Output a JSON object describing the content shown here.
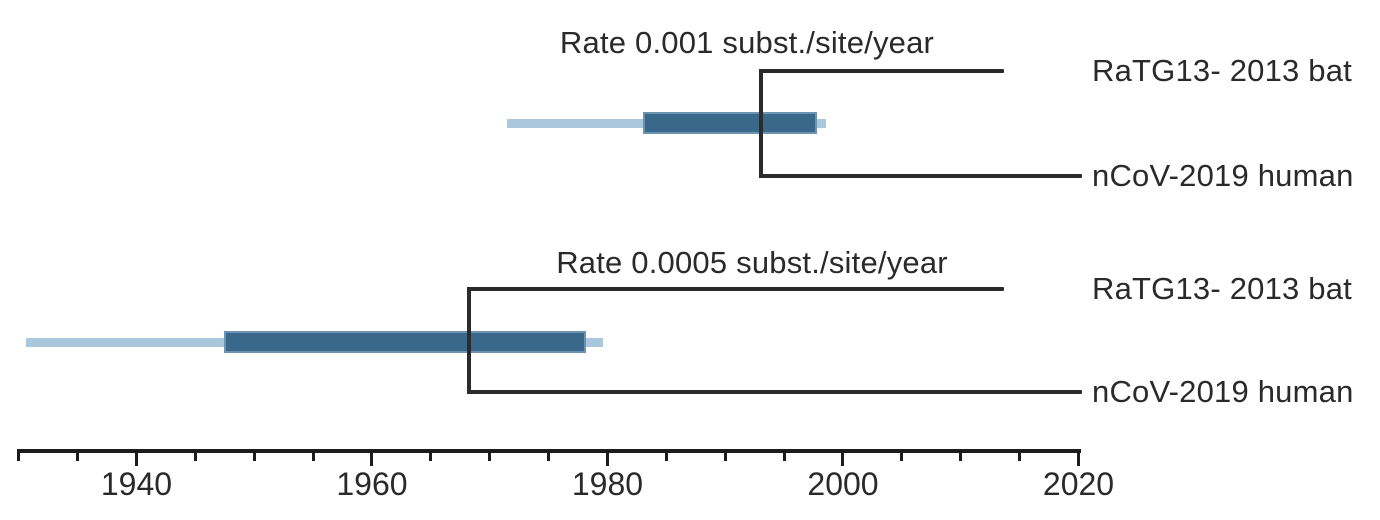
{
  "figure": {
    "background": "#ffffff"
  },
  "chart_data": {
    "type": "bar",
    "variant": "phylogenetic-trees-with-divergence-date-intervals",
    "title": "",
    "xlabel": "",
    "ylabel": "",
    "grid": false,
    "legend": "none",
    "axis": {
      "min_year": 1930,
      "max_year": 2020,
      "minor_tick_interval_years": 5,
      "major_ticks": [
        1940,
        1960,
        1980,
        2000,
        2020
      ],
      "tick_labels": [
        "1940",
        "1960",
        "1980",
        "2000",
        "2020"
      ]
    },
    "panels": [
      {
        "title": "Rate 0.001 subst./site/year",
        "node_year": 1993.0,
        "ci_wide_years": [
          1971.5,
          1998.6
        ],
        "ci_narrow_years": [
          1983.0,
          1997.8
        ],
        "tips": [
          {
            "label": "RaTG13- 2013 bat",
            "year": 2013.7
          },
          {
            "label": "nCoV-2019 human",
            "year": 2020.3
          }
        ]
      },
      {
        "title": "Rate 0.0005 subst./site/year",
        "node_year": 1968.2,
        "ci_wide_years": [
          1930.6,
          1979.6
        ],
        "ci_narrow_years": [
          1947.4,
          1978.2
        ],
        "tips": [
          {
            "label": "RaTG13- 2013 bat",
            "year": 2013.7
          },
          {
            "label": "nCoV-2019 human",
            "year": 2020.3
          }
        ]
      }
    ],
    "colors": {
      "tree_line": "#2b2b2b",
      "axis_line": "#1c1c1c",
      "ci_wide_fill": "#a9c8dd",
      "ci_narrow_fill": "#3a688b",
      "ci_narrow_border": "#6c93b1",
      "text": "#2a2a2a"
    }
  }
}
